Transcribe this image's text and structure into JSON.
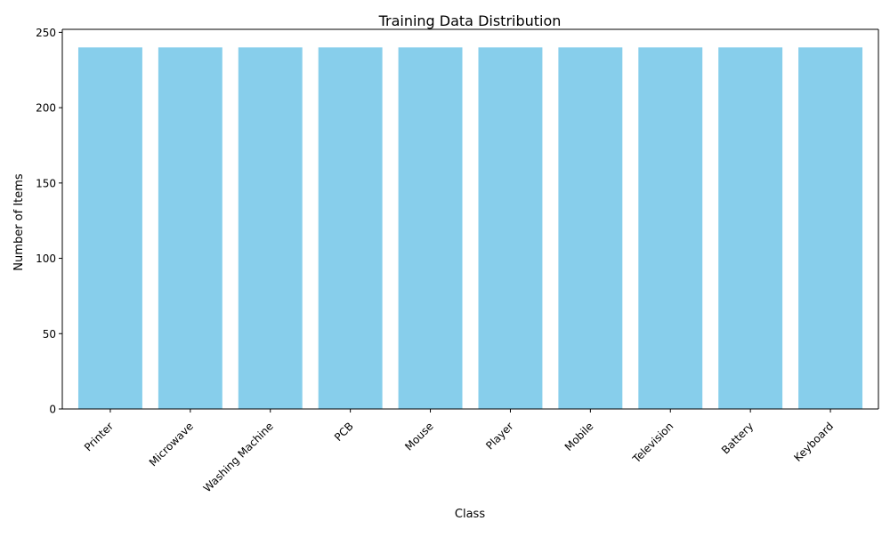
{
  "chart_data": {
    "type": "bar",
    "title": "Training Data Distribution",
    "xlabel": "Class",
    "ylabel": "Number of Items",
    "categories": [
      "Printer",
      "Microwave",
      "Washing Machine",
      "PCB",
      "Mouse",
      "Player",
      "Mobile",
      "Television",
      "Battery",
      "Keyboard"
    ],
    "values": [
      240,
      240,
      240,
      240,
      240,
      240,
      240,
      240,
      240,
      240
    ],
    "ylim": [
      0,
      252
    ],
    "yticks": [
      0,
      50,
      100,
      150,
      200,
      250
    ],
    "bar_color": "#87ceeb",
    "grid": false,
    "legend": "none",
    "xtick_rotation_deg": 45
  }
}
